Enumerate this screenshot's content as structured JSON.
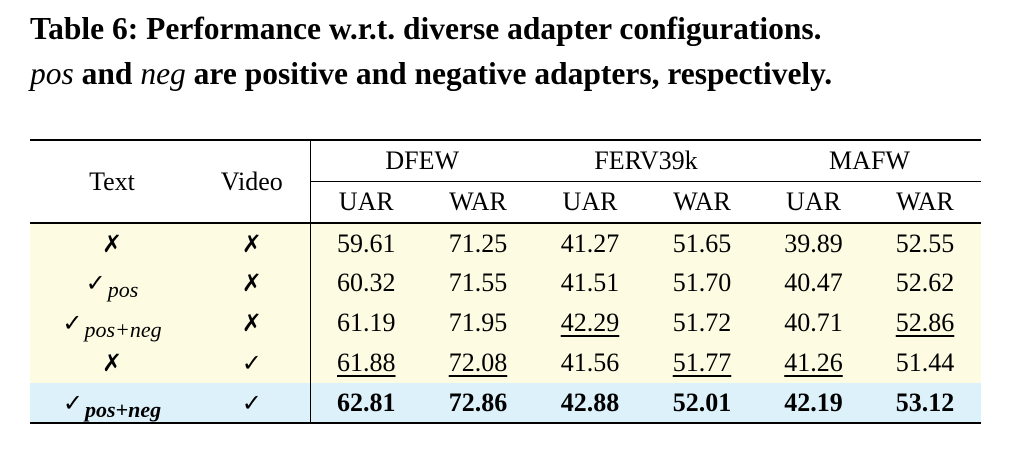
{
  "caption": {
    "line1": "Table 6: Performance w.r.t. diverse adapter configurations.",
    "line2_pos": "pos",
    "line2_and": " and ",
    "line2_neg": "neg",
    "line2_rest": " are positive and negative adapters, respectively."
  },
  "table": {
    "headers": {
      "text": "Text",
      "video": "Video",
      "groups": [
        "DFEW",
        "FERV39k",
        "MAFW"
      ],
      "metrics": [
        "UAR",
        "WAR",
        "UAR",
        "WAR",
        "UAR",
        "WAR"
      ]
    },
    "rows": [
      {
        "text": "✗",
        "text_sub": "",
        "video": "✗",
        "values": [
          "59.61",
          "71.25",
          "41.27",
          "51.65",
          "39.89",
          "52.55"
        ],
        "underline": [
          false,
          false,
          false,
          false,
          false,
          false
        ],
        "highlight": "yellow"
      },
      {
        "text": "✓",
        "text_sub": "pos",
        "video": "✗",
        "values": [
          "60.32",
          "71.55",
          "41.51",
          "51.70",
          "40.47",
          "52.62"
        ],
        "underline": [
          false,
          false,
          false,
          false,
          false,
          false
        ],
        "highlight": "yellow"
      },
      {
        "text": "✓",
        "text_sub": "pos+neg",
        "video": "✗",
        "values": [
          "61.19",
          "71.95",
          "42.29",
          "51.72",
          "40.71",
          "52.86"
        ],
        "underline": [
          false,
          false,
          true,
          false,
          false,
          true
        ],
        "highlight": "yellow"
      },
      {
        "text": "✗",
        "text_sub": "",
        "video": "✓",
        "values": [
          "61.88",
          "72.08",
          "41.56",
          "51.77",
          "41.26",
          "51.44"
        ],
        "underline": [
          true,
          true,
          false,
          true,
          true,
          false
        ],
        "highlight": "yellow"
      },
      {
        "text": "✓",
        "text_sub": "pos+neg",
        "video": "✓",
        "values": [
          "62.81",
          "72.86",
          "42.88",
          "52.01",
          "42.19",
          "53.12"
        ],
        "underline": [
          false,
          false,
          false,
          false,
          false,
          false
        ],
        "highlight": "blue"
      }
    ]
  }
}
